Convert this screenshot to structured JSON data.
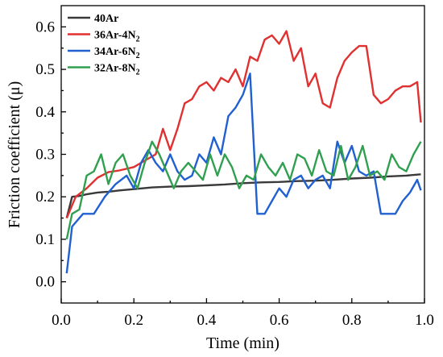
{
  "chart_data": {
    "type": "line",
    "xlabel": "Time (min)",
    "ylabel": "Friction coefficient (μ)",
    "xlim": [
      0.0,
      1.0
    ],
    "ylim": [
      -0.05,
      0.65
    ],
    "xticks": [
      "0.0",
      "0.2",
      "0.4",
      "0.6",
      "0.8",
      "1.0"
    ],
    "yticks": [
      "0.0",
      "0.1",
      "0.2",
      "0.3",
      "0.4",
      "0.5",
      "0.6"
    ],
    "legend_position": "top-left",
    "series": [
      {
        "name": "40Ar",
        "legend_base": "40Ar",
        "legend_sub": "",
        "color": "#3a3a3a",
        "x": [
          0.015,
          0.03,
          0.05,
          0.07,
          0.1,
          0.13,
          0.16,
          0.2,
          0.25,
          0.3,
          0.35,
          0.4,
          0.45,
          0.5,
          0.55,
          0.6,
          0.65,
          0.7,
          0.75,
          0.8,
          0.85,
          0.9,
          0.95,
          0.99
        ],
        "y": [
          0.15,
          0.2,
          0.202,
          0.206,
          0.21,
          0.212,
          0.215,
          0.218,
          0.222,
          0.224,
          0.225,
          0.227,
          0.229,
          0.232,
          0.234,
          0.235,
          0.237,
          0.238,
          0.24,
          0.243,
          0.245,
          0.248,
          0.25,
          0.253
        ]
      },
      {
        "name": "36Ar-4N2",
        "legend_base": "36Ar-4N",
        "legend_sub": "2",
        "color": "#e03030",
        "x": [
          0.015,
          0.04,
          0.07,
          0.1,
          0.13,
          0.16,
          0.2,
          0.23,
          0.26,
          0.28,
          0.3,
          0.32,
          0.34,
          0.36,
          0.38,
          0.4,
          0.42,
          0.44,
          0.46,
          0.48,
          0.5,
          0.52,
          0.54,
          0.56,
          0.58,
          0.6,
          0.62,
          0.64,
          0.66,
          0.68,
          0.7,
          0.72,
          0.74,
          0.76,
          0.78,
          0.8,
          0.82,
          0.84,
          0.86,
          0.88,
          0.9,
          0.92,
          0.94,
          0.96,
          0.98,
          0.99
        ],
        "y": [
          0.15,
          0.2,
          0.22,
          0.245,
          0.258,
          0.262,
          0.27,
          0.285,
          0.3,
          0.36,
          0.31,
          0.36,
          0.42,
          0.43,
          0.46,
          0.47,
          0.45,
          0.48,
          0.47,
          0.5,
          0.46,
          0.53,
          0.52,
          0.57,
          0.58,
          0.56,
          0.59,
          0.52,
          0.55,
          0.46,
          0.49,
          0.42,
          0.41,
          0.48,
          0.52,
          0.54,
          0.555,
          0.555,
          0.44,
          0.42,
          0.43,
          0.45,
          0.46,
          0.46,
          0.47,
          0.375
        ]
      },
      {
        "name": "34Ar-6N2",
        "legend_base": "34Ar-6N",
        "legend_sub": "2",
        "color": "#2060d0",
        "x": [
          0.015,
          0.03,
          0.06,
          0.09,
          0.12,
          0.15,
          0.18,
          0.2,
          0.22,
          0.24,
          0.26,
          0.28,
          0.3,
          0.32,
          0.34,
          0.36,
          0.38,
          0.4,
          0.42,
          0.44,
          0.46,
          0.48,
          0.5,
          0.52,
          0.54,
          0.56,
          0.58,
          0.6,
          0.62,
          0.64,
          0.66,
          0.68,
          0.7,
          0.72,
          0.74,
          0.76,
          0.78,
          0.8,
          0.82,
          0.84,
          0.86,
          0.88,
          0.9,
          0.92,
          0.94,
          0.96,
          0.98,
          0.99
        ],
        "y": [
          0.02,
          0.13,
          0.16,
          0.16,
          0.2,
          0.23,
          0.25,
          0.22,
          0.28,
          0.31,
          0.28,
          0.26,
          0.3,
          0.26,
          0.24,
          0.25,
          0.3,
          0.28,
          0.34,
          0.3,
          0.39,
          0.41,
          0.44,
          0.49,
          0.16,
          0.16,
          0.19,
          0.22,
          0.2,
          0.24,
          0.25,
          0.22,
          0.24,
          0.25,
          0.22,
          0.33,
          0.28,
          0.32,
          0.26,
          0.25,
          0.26,
          0.16,
          0.16,
          0.16,
          0.19,
          0.21,
          0.24,
          0.215
        ]
      },
      {
        "name": "32Ar-8N2",
        "legend_base": "32Ar-8N",
        "legend_sub": "2",
        "color": "#30a050",
        "x": [
          0.015,
          0.03,
          0.05,
          0.07,
          0.09,
          0.11,
          0.13,
          0.15,
          0.17,
          0.19,
          0.21,
          0.23,
          0.25,
          0.27,
          0.29,
          0.31,
          0.33,
          0.35,
          0.37,
          0.39,
          0.41,
          0.43,
          0.45,
          0.47,
          0.49,
          0.51,
          0.53,
          0.55,
          0.57,
          0.59,
          0.61,
          0.63,
          0.65,
          0.67,
          0.69,
          0.71,
          0.73,
          0.75,
          0.77,
          0.79,
          0.81,
          0.83,
          0.85,
          0.87,
          0.89,
          0.91,
          0.93,
          0.95,
          0.97,
          0.99
        ],
        "y": [
          0.1,
          0.16,
          0.17,
          0.25,
          0.26,
          0.3,
          0.23,
          0.28,
          0.3,
          0.25,
          0.22,
          0.28,
          0.33,
          0.3,
          0.26,
          0.22,
          0.26,
          0.28,
          0.26,
          0.24,
          0.3,
          0.25,
          0.3,
          0.27,
          0.22,
          0.25,
          0.24,
          0.3,
          0.27,
          0.25,
          0.28,
          0.24,
          0.3,
          0.29,
          0.25,
          0.31,
          0.26,
          0.25,
          0.32,
          0.24,
          0.27,
          0.32,
          0.25,
          0.26,
          0.24,
          0.3,
          0.27,
          0.26,
          0.3,
          0.33
        ]
      }
    ]
  }
}
